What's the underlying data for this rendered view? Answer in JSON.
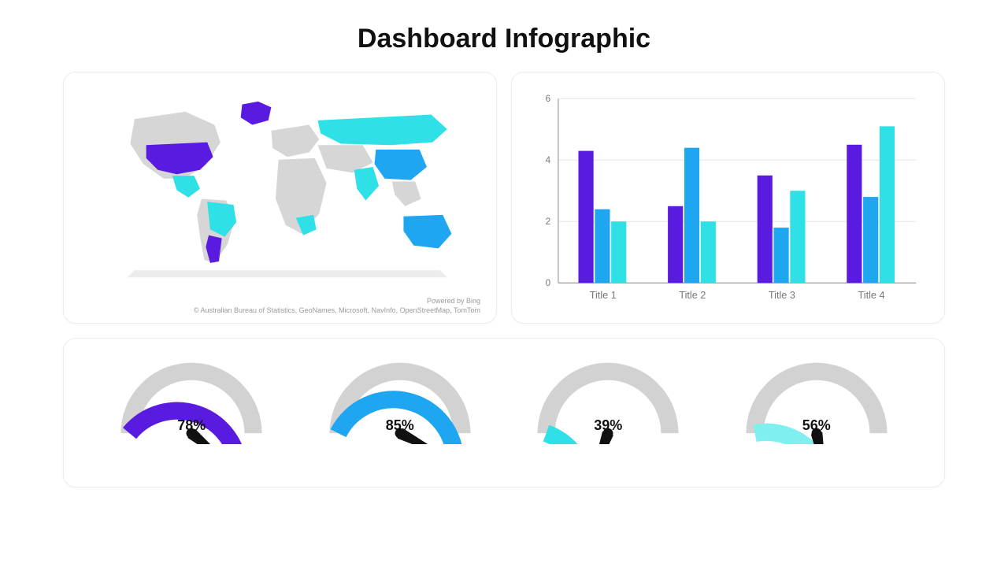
{
  "title": "Dashboard Infographic",
  "colors": {
    "purple": "#5a1be0",
    "blue": "#1ea6f0",
    "cyan": "#2fe0e6",
    "aqua": "#7feff0",
    "grey_land": "#d6d6d6",
    "grid": "#e6e6e6",
    "gauge_track": "#d2d2d2",
    "needle": "#111111"
  },
  "map": {
    "attribution_line1": "Powered by Bing",
    "attribution_line2": "© Australian Bureau of Statistics, GeoNames, Microsoft, NavInfo, OpenStreetMap, TomTom"
  },
  "bar_chart": {
    "type": "bar",
    "categories": [
      "Title 1",
      "Title 2",
      "Title 3",
      "Title 4"
    ],
    "series_colors": [
      "#5a1be0",
      "#1ea6f0",
      "#2fe0e6"
    ],
    "values": [
      [
        4.3,
        2.4,
        2.0
      ],
      [
        2.5,
        4.4,
        2.0
      ],
      [
        3.5,
        1.8,
        3.0
      ],
      [
        4.5,
        2.8,
        5.1
      ]
    ],
    "ylim": [
      0,
      6
    ],
    "ytick_step": 2,
    "axis_color": "#888888",
    "grid_color": "#e6e6e6",
    "label_fontsize": 12,
    "bar_group_width": 0.55
  },
  "gauges": [
    {
      "percent": 78,
      "color": "#5a1be0"
    },
    {
      "percent": 85,
      "color": "#1ea6f0"
    },
    {
      "percent": 39,
      "color": "#2fe0e6"
    },
    {
      "percent": 56,
      "color": "#7feff0"
    }
  ]
}
